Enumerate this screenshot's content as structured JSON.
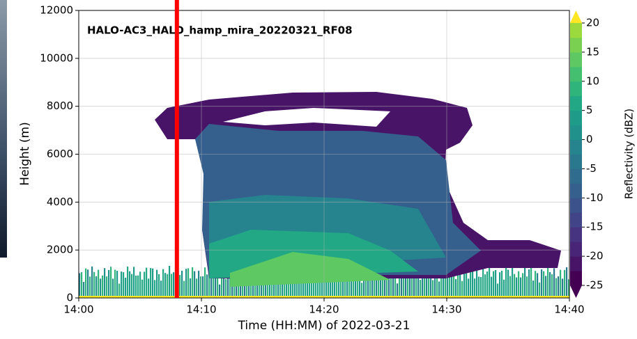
{
  "chart_data": {
    "type": "radar-curtain",
    "title": "HALO-AC3_HALO_hamp_mira_20220321_RF08",
    "xlabel": "Time (HH:MM) of 2022-03-21",
    "ylabel": "Height (m)",
    "xlim": [
      "14:00",
      "14:40"
    ],
    "xticks": [
      "14:00",
      "14:10",
      "14:20",
      "14:30",
      "14:40"
    ],
    "ylim": [
      0,
      12000
    ],
    "yticks": [
      0,
      2000,
      4000,
      6000,
      8000,
      10000,
      12000
    ],
    "grid": true,
    "marker_x": "14:08",
    "marker_color": "#ff0000",
    "colorbar": {
      "label": "Reflectivity (dBZ)",
      "lim": [
        -25,
        20
      ],
      "ticks": [
        -25,
        -20,
        -15,
        -10,
        -5,
        0,
        5,
        10,
        15,
        20
      ],
      "colors": [
        "#440154",
        "#481467",
        "#482576",
        "#463480",
        "#414487",
        "#3b528b",
        "#355f8d",
        "#2f6c8e",
        "#2a788e",
        "#25848e",
        "#21918c",
        "#1e9c89",
        "#22a884",
        "#2fb47c",
        "#44bf70",
        "#5ec962",
        "#7ad151",
        "#9bd93c"
      ],
      "extend_low": "#440154",
      "extend_high": "#fde725"
    }
  }
}
